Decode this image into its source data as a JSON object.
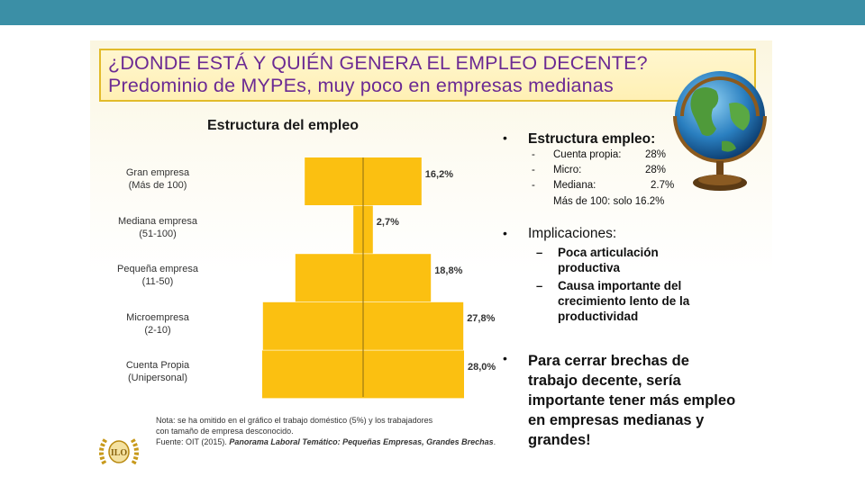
{
  "slide": {
    "title_line1": "¿DONDE ESTÁ Y QUIÉN GENERA EL EMPLEO DECENTE?",
    "title_line2": "Predominio de MYPEs, muy poco en empresas medianas"
  },
  "colors": {
    "topbar": "#3b8fa6",
    "title_text": "#6b2a93",
    "bar": "#fbc011",
    "title_border": "#e2bb2a"
  },
  "icons": {
    "globe": "globe-icon",
    "logo": "ilo-logo"
  },
  "chart_data": {
    "type": "bar",
    "orientation": "horizontal-symmetric",
    "title": "Estructura del empleo",
    "categories": [
      {
        "name": "Gran empresa",
        "sub": "(Más de 100)"
      },
      {
        "name": "Mediana empresa",
        "sub": "(51-100)"
      },
      {
        "name": "Pequeña empresa",
        "sub": "(11-50)"
      },
      {
        "name": "Microempresa",
        "sub": "(2-10)"
      },
      {
        "name": "Cuenta Propia",
        "sub": "(Unipersonal)"
      }
    ],
    "values": [
      16.2,
      2.7,
      18.8,
      27.8,
      28.0
    ],
    "value_labels": [
      "16,2%",
      "2,7%",
      "18,8%",
      "27,8%",
      "28,0%"
    ],
    "unit": "%",
    "xlim": [
      0,
      28
    ]
  },
  "note": {
    "line1": "Nota: se ha omitido en el gráfico el trabajo doméstico (5%) y los trabajadores",
    "line2": "con tamaño de empresa desconocido.",
    "source_prefix": "Fuente: OIT (2015). ",
    "source_title": "Panorama Laboral Temático: Pequeñas Empresas, Grandes Brechas",
    "source_suffix": "."
  },
  "bullets": {
    "b1_title": "Estructura empleo:",
    "b1_items": [
      {
        "dash": "-",
        "label": "Cuenta propia:",
        "value": "28%"
      },
      {
        "dash": "-",
        "label": "Micro:",
        "value": "28%"
      },
      {
        "dash": "-",
        "label": "Mediana:",
        "value": "2.7%"
      }
    ],
    "b1_extra": "Más de 100:  solo 16.2%",
    "b2_title": "Implicaciones:",
    "b2_items": [
      {
        "dash": "–",
        "text": "Poca articulación productiva"
      },
      {
        "dash": "–",
        "text": "Causa importante del crecimiento lento de la productividad"
      }
    ],
    "b3_text": "Para cerrar brechas de trabajo decente, sería importante tener más empleo en empresas medianas y grandes!",
    "marker": "•"
  }
}
